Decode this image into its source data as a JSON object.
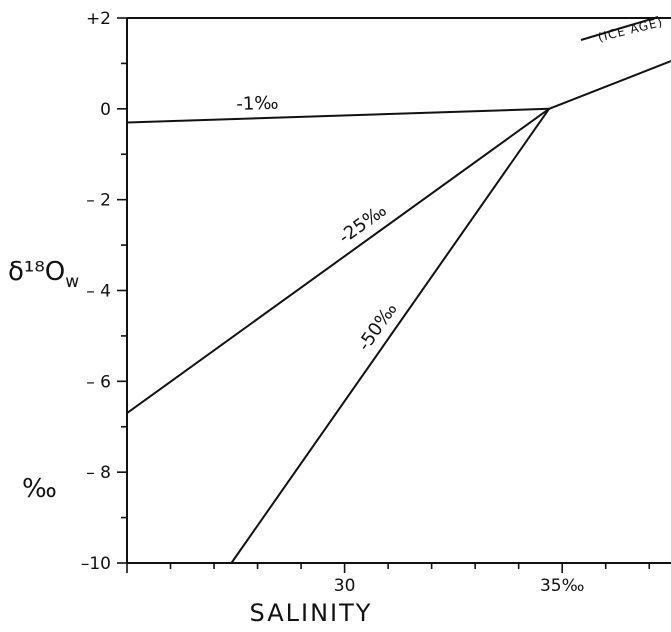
{
  "chart_data": {
    "type": "line",
    "xlabel": "SALINITY",
    "ylabel": "δ¹⁸O_w",
    "ylabel_main": "δ¹⁸O",
    "ylabel_sub": "w",
    "yunit": "‰",
    "xlim": [
      25,
      37.5
    ],
    "ylim": [
      -10,
      2
    ],
    "x_ticks": [
      {
        "value": 30,
        "label": "30"
      },
      {
        "value": 35,
        "label": "35‰"
      }
    ],
    "y_ticks": [
      {
        "value": 2,
        "label": "+2"
      },
      {
        "value": 0,
        "label": "0"
      },
      {
        "value": -2,
        "label": "– 2"
      },
      {
        "value": -4,
        "label": "– 4"
      },
      {
        "value": -6,
        "label": "– 6"
      },
      {
        "value": -8,
        "label": "– 8"
      },
      {
        "value": -10,
        "label": "–10"
      }
    ],
    "series": [
      {
        "name": "-1‰",
        "x": [
          25,
          34.7
        ],
        "y": [
          -0.3,
          0
        ]
      },
      {
        "name": "-25‰",
        "x": [
          25,
          34.7
        ],
        "y": [
          -6.7,
          0
        ]
      },
      {
        "name": "-50‰",
        "x": [
          27.4,
          34.7
        ],
        "y": [
          -10,
          0
        ]
      },
      {
        "name": "",
        "x": [
          34.7,
          37.5
        ],
        "y": [
          0,
          1.05
        ]
      }
    ],
    "annotations": [
      {
        "text": "(ICE AGE)",
        "x": 35.85,
        "y": 1.48
      }
    ]
  }
}
